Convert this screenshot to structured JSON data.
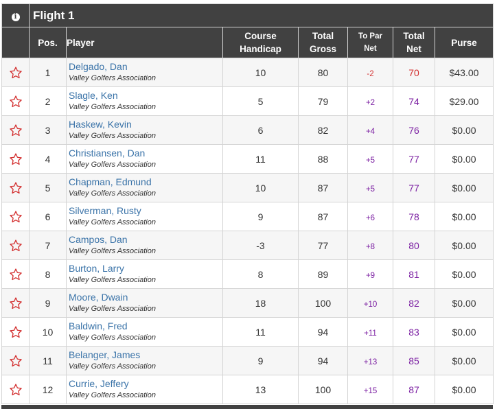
{
  "flight": {
    "title": "Flight 1",
    "info_icon": "info-icon"
  },
  "columns": {
    "pos": "Pos.",
    "player": "Player",
    "course_handicap_1": "Course",
    "course_handicap_2": "Handicap",
    "total_gross_1": "Total",
    "total_gross_2": "Gross",
    "to_par_net_1": "To Par",
    "to_par_net_2": "Net",
    "total_net_1": "Total",
    "total_net_2": "Net",
    "purse": "Purse"
  },
  "colors": {
    "header_bg": "#414141",
    "player_link": "#3a73a8",
    "over_par": "#7b1fa2",
    "under_par": "#d32f2f",
    "star": "#d32f2f"
  },
  "rows": [
    {
      "pos": "1",
      "name": "Delgado, Dan",
      "assoc": "Valley Golfers Association",
      "handicap": "10",
      "gross": "80",
      "to_par": "-2",
      "net": "70",
      "purse": "$43.00",
      "under": true
    },
    {
      "pos": "2",
      "name": "Slagle, Ken",
      "assoc": "Valley Golfers Association",
      "handicap": "5",
      "gross": "79",
      "to_par": "+2",
      "net": "74",
      "purse": "$29.00",
      "under": false
    },
    {
      "pos": "3",
      "name": "Haskew, Kevin",
      "assoc": "Valley Golfers Association",
      "handicap": "6",
      "gross": "82",
      "to_par": "+4",
      "net": "76",
      "purse": "$0.00",
      "under": false
    },
    {
      "pos": "4",
      "name": "Christiansen, Dan",
      "assoc": "Valley Golfers Association",
      "handicap": "11",
      "gross": "88",
      "to_par": "+5",
      "net": "77",
      "purse": "$0.00",
      "under": false
    },
    {
      "pos": "5",
      "name": "Chapman, Edmund",
      "assoc": "Valley Golfers Association",
      "handicap": "10",
      "gross": "87",
      "to_par": "+5",
      "net": "77",
      "purse": "$0.00",
      "under": false
    },
    {
      "pos": "6",
      "name": "Silverman, Rusty",
      "assoc": "Valley Golfers Association",
      "handicap": "9",
      "gross": "87",
      "to_par": "+6",
      "net": "78",
      "purse": "$0.00",
      "under": false
    },
    {
      "pos": "7",
      "name": "Campos, Dan",
      "assoc": "Valley Golfers Association",
      "handicap": "-3",
      "gross": "77",
      "to_par": "+8",
      "net": "80",
      "purse": "$0.00",
      "under": false
    },
    {
      "pos": "8",
      "name": "Burton, Larry",
      "assoc": "Valley Golfers Association",
      "handicap": "8",
      "gross": "89",
      "to_par": "+9",
      "net": "81",
      "purse": "$0.00",
      "under": false
    },
    {
      "pos": "9",
      "name": "Moore, Dwain",
      "assoc": "Valley Golfers Association",
      "handicap": "18",
      "gross": "100",
      "to_par": "+10",
      "net": "82",
      "purse": "$0.00",
      "under": false
    },
    {
      "pos": "10",
      "name": "Baldwin, Fred",
      "assoc": "Valley Golfers Association",
      "handicap": "11",
      "gross": "94",
      "to_par": "+11",
      "net": "83",
      "purse": "$0.00",
      "under": false
    },
    {
      "pos": "11",
      "name": "Belanger, James",
      "assoc": "Valley Golfers Association",
      "handicap": "9",
      "gross": "94",
      "to_par": "+13",
      "net": "85",
      "purse": "$0.00",
      "under": false
    },
    {
      "pos": "12",
      "name": "Currie, Jeffery",
      "assoc": "Valley Golfers Association",
      "handicap": "13",
      "gross": "100",
      "to_par": "+15",
      "net": "87",
      "purse": "$0.00",
      "under": false
    }
  ]
}
